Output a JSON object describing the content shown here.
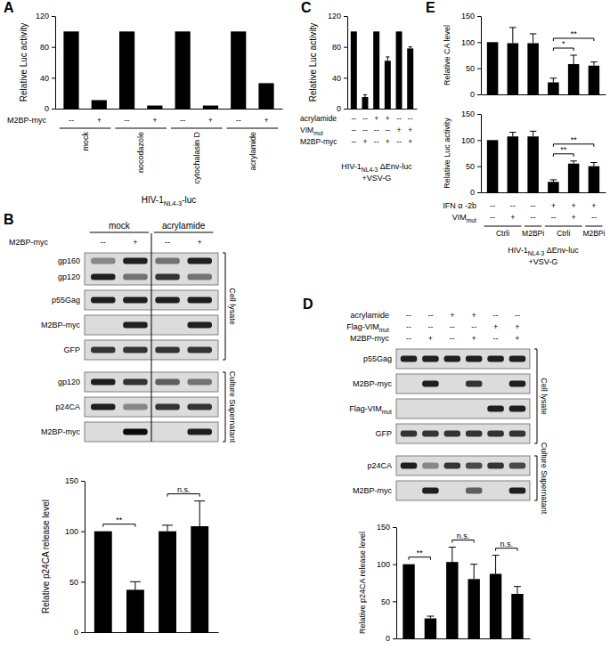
{
  "chart_data": [
    {
      "type": "bar",
      "ylabel": "Relative Luc activity",
      "categories": [
        null,
        null,
        null,
        null,
        null,
        null,
        null,
        null
      ],
      "values": [
        100,
        11,
        100,
        4,
        100,
        4,
        100,
        33
      ],
      "color": "#000000",
      "ylim": [
        0,
        120
      ],
      "yticks": [
        0,
        40,
        80,
        120
      ]
    },
    {
      "type": "bar",
      "ylabel": "Relative p24CA release level",
      "categories": [
        null,
        null,
        null,
        null
      ],
      "values": [
        100,
        42,
        100,
        105
      ],
      "errors": [
        null,
        8,
        6,
        25
      ],
      "color": "#000000",
      "ylim": [
        0,
        150
      ],
      "yticks": [
        0,
        50,
        100,
        150
      ],
      "annotations": [
        {
          "text": "**",
          "from": 0,
          "to": 1
        },
        {
          "text": "n.s.",
          "from": 2,
          "to": 3
        }
      ]
    },
    {
      "type": "bar",
      "ylabel": "Relative Luc activity",
      "categories": [
        null,
        null,
        null,
        null,
        null,
        null
      ],
      "values": [
        100,
        15,
        100,
        62,
        100,
        78
      ],
      "errors": [
        null,
        3,
        null,
        5,
        null,
        2
      ],
      "color": "#000000",
      "ylim": [
        0,
        120
      ],
      "yticks": [
        0,
        40,
        80,
        120
      ]
    },
    {
      "type": "bar",
      "ylabel": "Relative p24CA release level",
      "categories": [
        null,
        null,
        null,
        null,
        null,
        null
      ],
      "values": [
        100,
        27,
        103,
        80,
        87,
        60
      ],
      "errors": [
        null,
        3,
        20,
        20,
        25,
        10
      ],
      "color": "#000000",
      "ylim": [
        0,
        150
      ],
      "yticks": [
        0,
        50,
        100,
        150
      ],
      "annotations": [
        {
          "text": "**",
          "from": 0,
          "to": 1
        },
        {
          "text": "n.s.",
          "from": 2,
          "to": 3
        },
        {
          "text": "n.s.",
          "from": 4,
          "to": 5
        }
      ]
    },
    {
      "type": "bar",
      "ylabel": "Relative CA level",
      "categories": [
        null,
        null,
        null,
        null,
        null,
        null
      ],
      "values": [
        100,
        98,
        98,
        23,
        58,
        55
      ],
      "errors": [
        null,
        30,
        18,
        8,
        17,
        7
      ],
      "color": "#000000",
      "ylim": [
        0,
        150
      ],
      "yticks": [
        0,
        50,
        100,
        150
      ],
      "annotations": [
        {
          "text": "*",
          "from": 3,
          "to": 4
        },
        {
          "text": "**",
          "from": 3,
          "to": 5
        }
      ]
    },
    {
      "type": "bar",
      "ylabel": "Relative Luc activity",
      "categories": [
        null,
        null,
        null,
        null,
        null,
        null
      ],
      "values": [
        100,
        107,
        107,
        20,
        55,
        50
      ],
      "errors": [
        null,
        8,
        10,
        4,
        5,
        7
      ],
      "color": "#000000",
      "ylim": [
        0,
        150
      ],
      "yticks": [
        0,
        50,
        100,
        150
      ],
      "annotations": [
        {
          "text": "**",
          "from": 3,
          "to": 4
        },
        {
          "text": "**",
          "from": 3,
          "to": 5
        }
      ]
    }
  ],
  "figure": {
    "panels": [
      {
        "letter": "A",
        "rows": [
          {
            "label": "M2BP-myc",
            "cells": [
              "--",
              "+",
              "--",
              "+",
              "--",
              "+",
              "--",
              "+"
            ]
          }
        ],
        "groups": [
          {
            "label": "mock",
            "from": 0,
            "to": 1
          },
          {
            "label": "nocodazole",
            "from": 2,
            "to": 3
          },
          {
            "label": "cytochalasin D",
            "from": 4,
            "to": 5
          },
          {
            "label": "acrylamide",
            "from": 6,
            "to": 7
          }
        ],
        "caption": [
          [
            "HIV-1",
            "NL4-3",
            "-luc"
          ]
        ]
      },
      {
        "letter": "B",
        "groups": [
          {
            "label": "mock",
            "from": 0,
            "to": 1
          },
          {
            "label": "acrylamide",
            "from": 2,
            "to": 3
          }
        ],
        "rows": [
          {
            "label": "M2BP-myc",
            "cells": [
              "--",
              "+",
              "--",
              "+"
            ]
          }
        ],
        "blots": [
          {
            "labels": [
              "gp160",
              "gp120"
            ],
            "intensity": [
              [
                0.4,
                0.9,
                0.5,
                0.9
              ],
              [
                0.9,
                0.5,
                0.8,
                0.5
              ]
            ]
          },
          {
            "labels": [
              "p55Gag"
            ],
            "intensity": [
              [
                0.9,
                0.9,
                0.9,
                0.9
              ]
            ]
          },
          {
            "labels": [
              "M2BP-myc"
            ],
            "intensity": [
              [
                0,
                0.9,
                0,
                0.9
              ]
            ]
          },
          {
            "labels": [
              "GFP"
            ],
            "intensity": [
              [
                0.8,
                0.8,
                0.8,
                0.8
              ]
            ]
          },
          {
            "labels": [
              "gp120"
            ],
            "intensity": [
              [
                0.9,
                0.8,
                0.6,
                0.5
              ]
            ]
          },
          {
            "labels": [
              "p24CA"
            ],
            "intensity": [
              [
                0.9,
                0.4,
                0.8,
                0.8
              ]
            ]
          },
          {
            "labels": [
              "M2BP-myc"
            ],
            "intensity": [
              [
                0,
                1,
                0,
                0.9
              ]
            ]
          }
        ],
        "sections": [
          {
            "label": "Cell lysate",
            "from": 0,
            "to": 3
          },
          {
            "label": "Culture Supernatant",
            "from": 4,
            "to": 6
          }
        ]
      },
      {
        "letter": "C",
        "rows": [
          {
            "label": "acrylamide",
            "cells": [
              "--",
              "--",
              "+",
              "+",
              "--",
              "--"
            ]
          },
          {
            "label": [
              "VIM",
              "mut"
            ],
            "cells": [
              "--",
              "--",
              "--",
              "--",
              "+",
              "+"
            ]
          },
          {
            "label": "M2BP-myc",
            "cells": [
              "--",
              "+",
              "--",
              "+",
              "--",
              "+"
            ]
          }
        ],
        "caption": [
          [
            "HIV-1",
            "NL4-3",
            " ΔEnv-luc"
          ],
          "+VSV-G"
        ]
      },
      {
        "letter": "D",
        "rows": [
          {
            "label": "acrylamide",
            "cells": [
              "--",
              "--",
              "+",
              "+",
              "--",
              "--"
            ]
          },
          {
            "label": [
              "Flag-VIM",
              "mut"
            ],
            "cells": [
              "--",
              "--",
              "--",
              "--",
              "+",
              "+"
            ]
          },
          {
            "label": "M2BP-myc",
            "cells": [
              "--",
              "+",
              "--",
              "+",
              "--",
              "+"
            ]
          }
        ],
        "blots": [
          {
            "labels": [
              "p55Gag"
            ],
            "intensity": [
              [
                0.9,
                0.9,
                0.9,
                0.9,
                0.9,
                0.9
              ]
            ]
          },
          {
            "labels": [
              "M2BP-myc"
            ],
            "intensity": [
              [
                0,
                0.9,
                0,
                0.8,
                0,
                0.9
              ]
            ]
          },
          {
            "labels": [
              [
                "Flag-VIM",
                "mut"
              ]
            ],
            "intensity": [
              [
                0,
                0,
                0,
                0,
                0.9,
                0.9
              ]
            ]
          },
          {
            "labels": [
              "GFP"
            ],
            "intensity": [
              [
                0.8,
                0.8,
                0.8,
                0.8,
                0.8,
                0.8
              ]
            ]
          },
          {
            "labels": [
              "p24CA"
            ],
            "intensity": [
              [
                0.9,
                0.4,
                0.8,
                0.7,
                0.8,
                0.7
              ]
            ]
          },
          {
            "labels": [
              "M2BP-myc"
            ],
            "intensity": [
              [
                0,
                0.9,
                0,
                0.6,
                0,
                0.9
              ]
            ]
          }
        ],
        "sections": [
          {
            "label": "Cell lysate",
            "from": 0,
            "to": 3
          },
          {
            "label": "Culture Supernatant",
            "from": 4,
            "to": 5
          }
        ]
      },
      {
        "letter": "E",
        "rows": [
          {
            "label": "IFN α -2b",
            "cells": [
              "--",
              "--",
              "--",
              "+",
              "+",
              "+"
            ]
          },
          {
            "label": [
              "VIM",
              "mut"
            ],
            "cells": [
              "--",
              "+",
              "--",
              "--",
              "+",
              "--"
            ]
          }
        ],
        "groups": [
          {
            "label": "Ctrli",
            "from": 0,
            "to": 1
          },
          {
            "label": "M2BPi",
            "from": 2,
            "to": 2
          },
          {
            "label": "Ctrli",
            "from": 3,
            "to": 4
          },
          {
            "label": "M2BPi",
            "from": 5,
            "to": 5
          }
        ],
        "caption": [
          [
            "HIV-1",
            "NL4-3",
            " ΔEnv-luc"
          ],
          "+VSV-G"
        ]
      }
    ]
  }
}
